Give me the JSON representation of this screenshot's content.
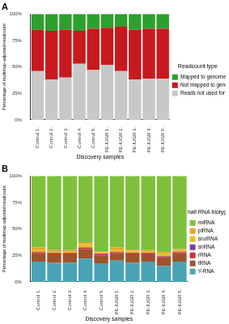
{
  "chart_data": [
    {
      "type": "bar",
      "title": "A",
      "stacked": true,
      "grid": false,
      "x_label": "Discovery samples",
      "y_label": "Percentage of multimap-adjusted readcount",
      "legend": "right",
      "legend_title": "Readcount type",
      "categories": [
        "Control 1.",
        "Control 2.",
        "Control 3.",
        "Control 4.",
        "Control 5.",
        "PE-IUGR 1.",
        "PE-IUGR 2.",
        "PE-IUGR 3.",
        "PE-IUGR 4.",
        "PE-IUGR 5."
      ],
      "ylim": [
        0,
        100
      ],
      "yticks": [
        {
          "value": 0,
          "label": "0%"
        },
        {
          "value": 25,
          "label": "25%"
        },
        {
          "value": 50,
          "label": "50%"
        },
        {
          "value": 75,
          "label": "75%"
        },
        {
          "value": 100,
          "label": "100%"
        }
      ],
      "series": [
        {
          "name": "Mapped to genome",
          "color": "#2ca02c",
          "values": [
            15,
            16,
            15,
            16,
            14,
            13,
            12,
            15,
            14,
            14
          ]
        },
        {
          "name": "Not mapped to genome",
          "color": "#c8191e",
          "values": [
            39,
            46,
            45,
            31,
            39,
            35,
            42,
            47,
            47,
            47
          ]
        },
        {
          "name": "Reads not used for alignment",
          "color": "#c8c8c8",
          "values": [
            46,
            38,
            40,
            53,
            47,
            52,
            46,
            38,
            39,
            39
          ]
        }
      ]
    },
    {
      "type": "bar",
      "title": "B",
      "stacked": true,
      "grid": false,
      "x_label": "Discovery samples",
      "y_label": "Percentage of multimap-adjusted readcount",
      "legend": "right",
      "legend_title": "small RNA biotype",
      "categories": [
        "Control 1.",
        "Control 2.",
        "Control 3.",
        "Control 4.",
        "Control 5.",
        "PE-IUGR 1.",
        "PE-IUGR 2.",
        "PE-IUGR 3.",
        "PE-IUGR 4.",
        "PE-IUGR 5."
      ],
      "ylim": [
        0,
        100
      ],
      "yticks": [
        {
          "value": 0,
          "label": "0%"
        },
        {
          "value": 25,
          "label": "25%"
        },
        {
          "value": 50,
          "label": "50%"
        },
        {
          "value": 75,
          "label": "75%"
        },
        {
          "value": 100,
          "label": "100%"
        }
      ],
      "series": [
        {
          "name": "miRNA",
          "color": "#7dc13a",
          "values": [
            67.5,
            70,
            70,
            62.5,
            71,
            67.5,
            69.5,
            70,
            72,
            69
          ]
        },
        {
          "name": "piRNA",
          "color": "#f0a030",
          "values": [
            2,
            1,
            1,
            2,
            1,
            2,
            1,
            1,
            1.5,
            1
          ]
        },
        {
          "name": "snoRNA",
          "color": "#e8c020",
          "values": [
            2,
            1.5,
            1.5,
            3,
            1.5,
            2,
            2,
            1.5,
            2,
            1.5
          ]
        },
        {
          "name": "snRNA",
          "color": "#7b3f9e",
          "values": [
            0.5,
            0.5,
            0.5,
            0.5,
            0.5,
            0.5,
            0.5,
            0.5,
            0.5,
            0.5
          ]
        },
        {
          "name": "rRNA",
          "color": "#d03030",
          "values": [
            1,
            1,
            1,
            1,
            1,
            1,
            1,
            1,
            1,
            1
          ]
        },
        {
          "name": "tRNA",
          "color": "#a0522d",
          "values": [
            8,
            8,
            8,
            9,
            8,
            7,
            8,
            7,
            8,
            8
          ]
        },
        {
          "name": "Y-RNA",
          "color": "#4aa3b5",
          "values": [
            19,
            18,
            18,
            22,
            17,
            20,
            18,
            19,
            15,
            19
          ]
        }
      ]
    }
  ]
}
